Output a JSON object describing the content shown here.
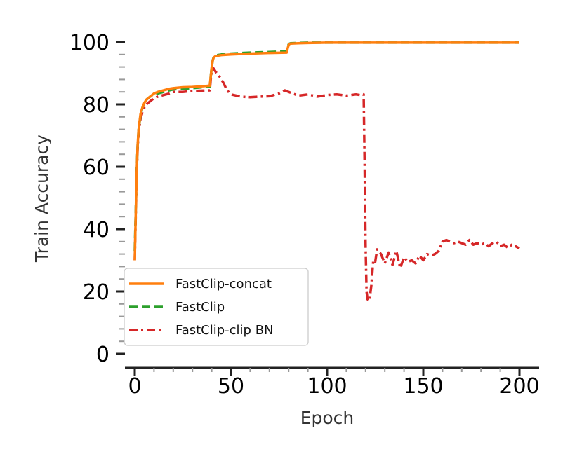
{
  "chart_data": {
    "type": "line",
    "title": "",
    "xlabel": "Epoch",
    "ylabel": "Train Accuracy",
    "xlim": [
      0,
      200
    ],
    "ylim": [
      0,
      100
    ],
    "xticks": [
      0,
      50,
      100,
      150,
      200
    ],
    "yticks": [
      0,
      20,
      40,
      60,
      80,
      100
    ],
    "grid": false,
    "legend_position": "lower-left",
    "series": [
      {
        "name": "FastClip-concat",
        "color": "#ff7f0e",
        "style": "solid",
        "x": [
          0,
          0.5,
          1,
          1.5,
          2,
          3,
          4,
          5,
          6,
          8,
          10,
          12,
          15,
          18,
          20,
          25,
          30,
          35,
          39,
          39.5,
          40,
          40.5,
          41,
          42,
          45,
          50,
          60,
          70,
          79,
          79.5,
          80,
          80.5,
          81,
          85,
          90,
          100,
          120,
          140,
          160,
          180,
          200
        ],
        "y": [
          30,
          45,
          58,
          67,
          72,
          77,
          79,
          80.5,
          81.5,
          82.5,
          83.5,
          84,
          84.5,
          85,
          85.2,
          85.5,
          85.6,
          85.8,
          86,
          89,
          92,
          94,
          95,
          95.5,
          95.8,
          96,
          96.3,
          96.5,
          96.6,
          98,
          99,
          99.4,
          99.5,
          99.6,
          99.7,
          99.8,
          99.8,
          99.8,
          99.8,
          99.8,
          99.8
        ]
      },
      {
        "name": "FastClip",
        "color": "#2ca02c",
        "style": "dashed",
        "x": [
          0,
          0.5,
          1,
          1.5,
          2,
          3,
          4,
          5,
          6,
          8,
          10,
          12,
          15,
          18,
          20,
          25,
          30,
          35,
          39,
          39.5,
          40,
          40.5,
          41,
          42,
          45,
          50,
          60,
          70,
          79,
          79.5,
          80,
          80.5,
          81,
          85,
          90,
          100,
          120,
          140,
          160,
          180,
          200
        ],
        "y": [
          33,
          46,
          59,
          67,
          72,
          76.5,
          79,
          80.5,
          81.5,
          82.5,
          83,
          83.5,
          84,
          84.5,
          84.8,
          85,
          85.2,
          85.5,
          85.7,
          89,
          92,
          94,
          95.2,
          95.7,
          96,
          96.3,
          96.6,
          96.8,
          97,
          98.5,
          99.2,
          99.5,
          99.6,
          99.7,
          99.8,
          99.8,
          99.8,
          99.8,
          99.8,
          99.8,
          99.8
        ]
      },
      {
        "name": "FastClip-clip BN",
        "color": "#d62728",
        "style": "dashdot",
        "x": [
          0,
          0.5,
          1,
          1.5,
          2,
          3,
          4,
          5,
          6,
          8,
          10,
          12,
          15,
          18,
          20,
          25,
          30,
          35,
          39,
          39.5,
          40,
          40.5,
          41,
          42,
          44,
          46,
          48,
          50,
          55,
          60,
          65,
          70,
          75,
          78,
          80,
          85,
          90,
          95,
          100,
          105,
          110,
          115,
          117,
          118,
          119,
          119.5,
          120,
          120.5,
          121,
          122,
          123,
          124,
          125,
          126,
          128,
          130,
          132,
          134,
          136,
          138,
          140,
          142,
          144,
          146,
          148,
          150,
          152,
          154,
          156,
          158,
          160,
          162,
          164,
          166,
          168,
          170,
          172,
          174,
          176,
          178,
          180,
          182,
          184,
          186,
          188,
          190,
          192,
          194,
          196,
          198,
          200
        ],
        "y": [
          30,
          44,
          57,
          66,
          71,
          75.5,
          77.5,
          79,
          80,
          81,
          82,
          82.5,
          83,
          83.5,
          84,
          84,
          84.3,
          84.4,
          84.5,
          88,
          91,
          91.8,
          91.5,
          90.5,
          89,
          87,
          84.5,
          83.2,
          82.5,
          82.3,
          82.5,
          82.6,
          83.5,
          84.5,
          84,
          82.8,
          83.2,
          82.5,
          83,
          83.2,
          82.8,
          83.2,
          83,
          83.3,
          83.2,
          60,
          35,
          20,
          17.5,
          17,
          22,
          30,
          29.5,
          33.5,
          32,
          29,
          32.5,
          28.5,
          33,
          27.5,
          31,
          29.5,
          30,
          29,
          31.5,
          30,
          32,
          31.5,
          32,
          33,
          36,
          36.5,
          36,
          35.5,
          36,
          35.5,
          35,
          36.5,
          35,
          35.5,
          35,
          35.5,
          34.5,
          35.5,
          36,
          34.5,
          35,
          34,
          35,
          34.5,
          33.8
        ]
      }
    ]
  }
}
